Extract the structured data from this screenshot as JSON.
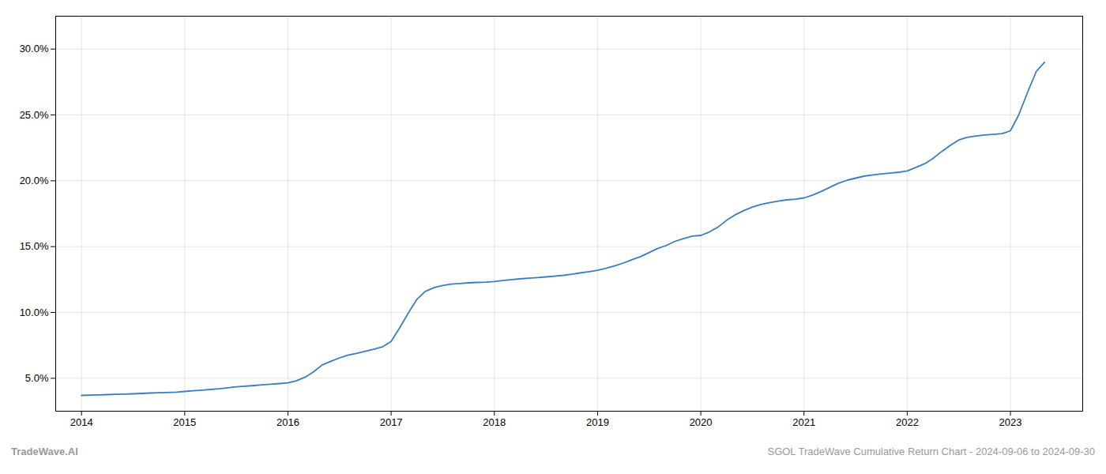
{
  "chart_data": {
    "type": "line",
    "color": "#3a7ebf",
    "grid": true,
    "x": [
      2014.0,
      2014.08,
      2014.17,
      2014.25,
      2014.33,
      2014.42,
      2014.5,
      2014.58,
      2014.67,
      2014.75,
      2014.83,
      2014.92,
      2015.0,
      2015.08,
      2015.17,
      2015.25,
      2015.33,
      2015.42,
      2015.5,
      2015.58,
      2015.67,
      2015.75,
      2015.83,
      2015.92,
      2016.0,
      2016.08,
      2016.17,
      2016.25,
      2016.33,
      2016.42,
      2016.5,
      2016.58,
      2016.67,
      2016.75,
      2016.83,
      2016.92,
      2017.0,
      2017.08,
      2017.17,
      2017.25,
      2017.33,
      2017.42,
      2017.5,
      2017.58,
      2017.67,
      2017.75,
      2017.83,
      2017.92,
      2018.0,
      2018.08,
      2018.17,
      2018.25,
      2018.33,
      2018.42,
      2018.5,
      2018.58,
      2018.67,
      2018.75,
      2018.83,
      2018.92,
      2019.0,
      2019.08,
      2019.17,
      2019.25,
      2019.33,
      2019.42,
      2019.5,
      2019.58,
      2019.67,
      2019.75,
      2019.83,
      2019.92,
      2020.0,
      2020.08,
      2020.17,
      2020.25,
      2020.33,
      2020.42,
      2020.5,
      2020.58,
      2020.67,
      2020.75,
      2020.83,
      2020.92,
      2021.0,
      2021.08,
      2021.17,
      2021.25,
      2021.33,
      2021.42,
      2021.5,
      2021.58,
      2021.67,
      2021.75,
      2021.83,
      2021.92,
      2022.0,
      2022.08,
      2022.17,
      2022.25,
      2022.33,
      2022.42,
      2022.5,
      2022.58,
      2022.67,
      2022.75,
      2022.83,
      2022.92,
      2023.0,
      2023.08,
      2023.17,
      2023.25,
      2023.33
    ],
    "values": [
      3.7,
      3.72,
      3.74,
      3.76,
      3.78,
      3.8,
      3.82,
      3.85,
      3.88,
      3.9,
      3.92,
      3.95,
      4.0,
      4.05,
      4.1,
      4.15,
      4.2,
      4.28,
      4.35,
      4.4,
      4.45,
      4.5,
      4.55,
      4.6,
      4.65,
      4.8,
      5.1,
      5.5,
      6.0,
      6.3,
      6.55,
      6.75,
      6.9,
      7.05,
      7.2,
      7.4,
      7.8,
      8.8,
      10.0,
      11.0,
      11.6,
      11.9,
      12.05,
      12.15,
      12.2,
      12.25,
      12.28,
      12.3,
      12.35,
      12.42,
      12.5,
      12.55,
      12.6,
      12.65,
      12.7,
      12.75,
      12.82,
      12.9,
      13.0,
      13.1,
      13.2,
      13.35,
      13.55,
      13.75,
      14.0,
      14.25,
      14.55,
      14.85,
      15.1,
      15.4,
      15.6,
      15.8,
      15.85,
      16.1,
      16.5,
      17.0,
      17.4,
      17.75,
      18.0,
      18.2,
      18.35,
      18.45,
      18.55,
      18.6,
      18.7,
      18.9,
      19.2,
      19.5,
      19.8,
      20.05,
      20.2,
      20.35,
      20.45,
      20.52,
      20.58,
      20.65,
      20.75,
      21.0,
      21.3,
      21.7,
      22.2,
      22.7,
      23.1,
      23.3,
      23.4,
      23.48,
      23.52,
      23.58,
      23.8,
      25.0,
      26.8,
      28.3,
      29.0
    ],
    "xlim": [
      2013.75,
      2023.7
    ],
    "xticks": [
      2014,
      2015,
      2016,
      2017,
      2018,
      2019,
      2020,
      2021,
      2022,
      2023
    ],
    "ylim": [
      2.5,
      32.5
    ],
    "yticks": [
      {
        "value": 5.0,
        "label": "5.0%"
      },
      {
        "value": 10.0,
        "label": "10.0%"
      },
      {
        "value": 15.0,
        "label": "15.0%"
      },
      {
        "value": 20.0,
        "label": "20.0%"
      },
      {
        "value": 25.0,
        "label": "25.0%"
      },
      {
        "value": 30.0,
        "label": "30.0%"
      }
    ],
    "annotations": [
      "TradeWave.AI",
      "SGOL TradeWave Cumulative Return Chart - 2024-09-06 to 2024-09-30"
    ]
  }
}
